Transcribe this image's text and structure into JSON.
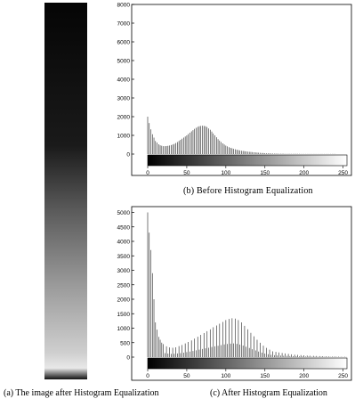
{
  "captions": {
    "a": "(a) The image after Histogram Equalization",
    "b": "(b)  Before  Histogram Equalization",
    "c": "(c) After Histogram Equalization"
  },
  "chart_data": [
    {
      "type": "bar",
      "title": "",
      "xlabel": "",
      "ylabel": "",
      "xlim": [
        0,
        255
      ],
      "ylim": [
        0,
        8000
      ],
      "yticks": [
        0,
        1000,
        2000,
        3000,
        4000,
        5000,
        6000,
        7000,
        8000
      ],
      "xticks": [
        0,
        50,
        100,
        150,
        200,
        250
      ],
      "grid": false,
      "colorbar": "gray gradient 0-255 below the plot",
      "x": [
        0,
        5,
        10,
        15,
        20,
        25,
        30,
        35,
        40,
        45,
        50,
        55,
        60,
        65,
        70,
        75,
        80,
        85,
        90,
        95,
        100,
        105,
        110,
        115,
        120,
        125,
        130,
        135,
        140,
        145,
        150,
        155,
        160,
        165,
        170,
        175,
        180,
        190,
        200,
        210,
        220,
        230,
        240,
        250,
        255
      ],
      "values": [
        2000,
        1150,
        700,
        480,
        420,
        430,
        480,
        560,
        700,
        850,
        1000,
        1180,
        1350,
        1480,
        1520,
        1480,
        1300,
        1050,
        800,
        600,
        450,
        350,
        280,
        220,
        180,
        150,
        120,
        100,
        80,
        60,
        45,
        35,
        28,
        22,
        18,
        15,
        12,
        10,
        8,
        6,
        5,
        4,
        3,
        2,
        1
      ]
    },
    {
      "type": "bar",
      "title": "",
      "xlabel": "",
      "ylabel": "",
      "xlim": [
        0,
        255
      ],
      "ylim": [
        0,
        5200
      ],
      "yticks": [
        0,
        500,
        1000,
        1500,
        2000,
        2500,
        3000,
        3500,
        4000,
        4500,
        5000
      ],
      "xticks": [
        0,
        50,
        100,
        150,
        200,
        250
      ],
      "grid": false,
      "colorbar": "gray gradient 0-255 below the plot",
      "x": [
        0,
        2,
        4,
        6,
        8,
        10,
        14,
        18,
        22,
        26,
        30,
        35,
        40,
        45,
        50,
        55,
        60,
        65,
        70,
        75,
        80,
        85,
        90,
        95,
        100,
        105,
        110,
        115,
        120,
        125,
        130,
        135,
        140,
        145,
        150,
        155,
        160,
        170,
        180,
        190,
        200,
        210,
        220,
        230,
        240,
        250,
        255
      ],
      "values": [
        5000,
        4300,
        3700,
        2900,
        2000,
        1200,
        700,
        500,
        400,
        350,
        320,
        330,
        380,
        430,
        500,
        560,
        640,
        720,
        800,
        880,
        960,
        1050,
        1120,
        1200,
        1280,
        1330,
        1350,
        1300,
        1200,
        1050,
        900,
        750,
        600,
        470,
        350,
        270,
        200,
        150,
        110,
        80,
        60,
        45,
        35,
        25,
        18,
        12,
        8
      ]
    }
  ]
}
